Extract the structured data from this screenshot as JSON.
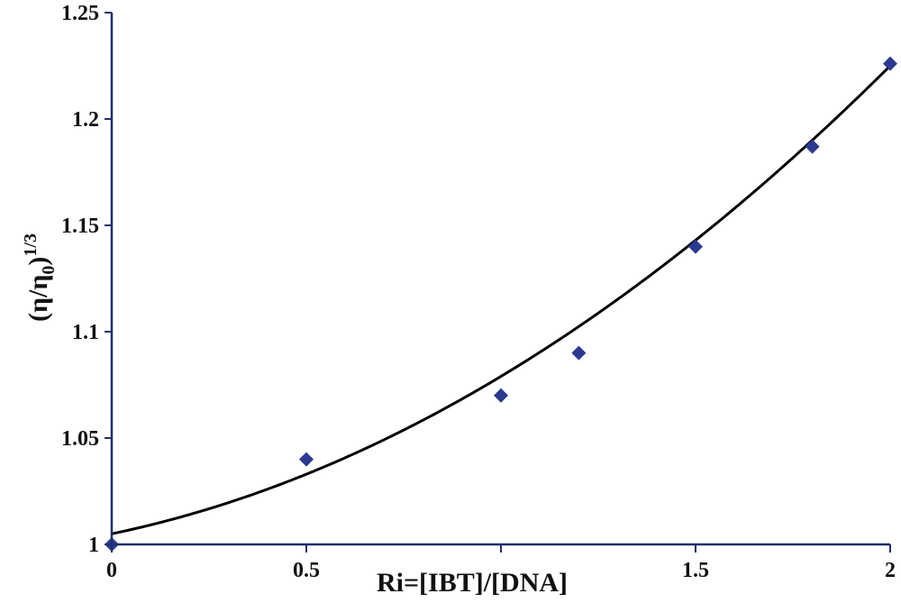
{
  "chart_data": {
    "type": "scatter",
    "xlabel": "Ri=[IBT]/[DNA]",
    "ylabel_main": "(η/η",
    "ylabel_sub": "0",
    "ylabel_close": ")",
    "ylabel_sup": "1/3",
    "xlim": [
      0,
      2
    ],
    "ylim": [
      1,
      1.25
    ],
    "x_ticks": [
      0,
      0.5,
      1,
      1.5,
      2
    ],
    "x_tick_labels": [
      "0",
      "0.5",
      "",
      "1.5",
      "2"
    ],
    "y_ticks": [
      1,
      1.05,
      1.1,
      1.15,
      1.2,
      1.25
    ],
    "y_tick_labels": [
      "1",
      "1.05",
      "1.1",
      "1.15",
      "1.2",
      "1.25"
    ],
    "grid": false,
    "legend": false,
    "series": [
      {
        "points": [
          {
            "x": 0,
            "y": 1.0
          },
          {
            "x": 0.5,
            "y": 1.04
          },
          {
            "x": 1.0,
            "y": 1.07
          },
          {
            "x": 1.2,
            "y": 1.09
          },
          {
            "x": 1.5,
            "y": 1.14
          },
          {
            "x": 1.8,
            "y": 1.187
          },
          {
            "x": 2.0,
            "y": 1.226
          }
        ],
        "marker": "diamond",
        "color": "#2b3990"
      }
    ],
    "trendline": {
      "type": "polynomial",
      "coefficients": [
        1.005,
        0.038,
        0.036
      ],
      "color": "#000000"
    }
  }
}
